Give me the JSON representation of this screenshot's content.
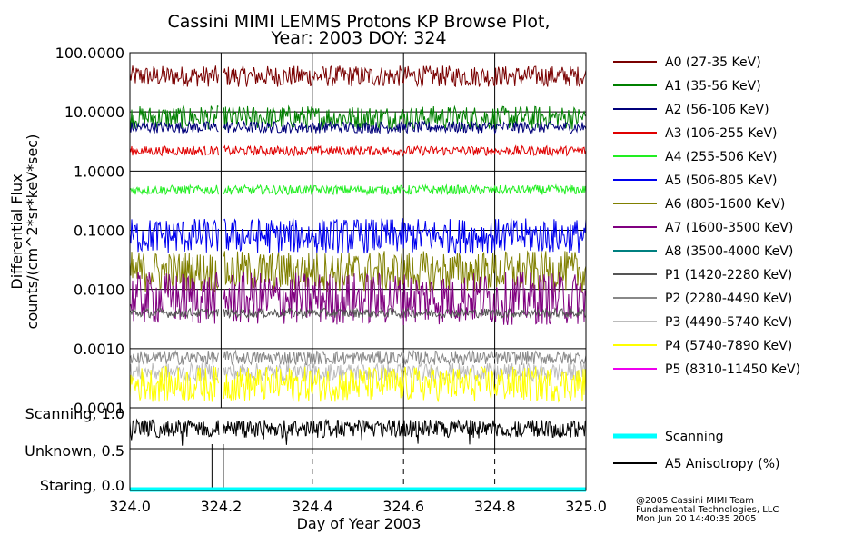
{
  "chart_data": {
    "type": "line",
    "title": "Cassini MIMI LEMMS Protons KP Browse Plot,",
    "subtitle": "Year: 2003 DOY: 324",
    "xlabel": "Day of Year 2003",
    "ylabel": "Differential Flux",
    "ylabel2": "counts/(cm^2*sr*keV*sec)",
    "xlim": [
      324.0,
      325.0
    ],
    "x_ticks": [
      "324.0",
      "324.2",
      "324.4",
      "324.6",
      "324.8",
      "325.0"
    ],
    "x_tick_values": [
      324.0,
      324.2,
      324.4,
      324.6,
      324.8,
      325.0
    ],
    "y_scale": "log",
    "ylim": [
      0.0001,
      100
    ],
    "y_ticks": [
      "100.0000",
      "10.0000",
      "1.0000",
      "0.1000",
      "0.0100",
      "0.0010",
      "0.0001"
    ],
    "y_tick_values": [
      100,
      10,
      1,
      0.1,
      0.01,
      0.001,
      0.0001
    ],
    "data_gap": [
      324.195,
      324.205
    ],
    "series": [
      {
        "name": "A0 (27-35 KeV)",
        "color": "#7a0000",
        "level": 40,
        "spread": 0.18
      },
      {
        "name": "A1 (35-56 KeV)",
        "color": "#008000",
        "level": 8,
        "spread": 0.2
      },
      {
        "name": "A2 (56-106 KeV)",
        "color": "#00007a",
        "level": 5.5,
        "spread": 0.1
      },
      {
        "name": "A3 (106-255 KeV)",
        "color": "#e00000",
        "level": 2.2,
        "spread": 0.08
      },
      {
        "name": "A4 (255-506 KeV)",
        "color": "#22ee22",
        "level": 0.48,
        "spread": 0.08
      },
      {
        "name": "A5 (506-805 KeV)",
        "color": "#0000ee",
        "level": 0.08,
        "spread": 0.3
      },
      {
        "name": "A6 (805-1600 KeV)",
        "color": "#808000",
        "level": 0.02,
        "spread": 0.35
      },
      {
        "name": "A7 (1600-3500 KeV)",
        "color": "#800080",
        "level": 0.007,
        "spread": 0.45
      },
      {
        "name": "A8 (3500-4000 KeV)",
        "color": "#008080",
        "level": 0.0001,
        "spread": 0.0
      },
      {
        "name": "P1 (1420-2280 KeV)",
        "color": "#555555",
        "level": 0.004,
        "spread": 0.08
      },
      {
        "name": "P2 (2280-4490 KeV)",
        "color": "#888888",
        "level": 0.0007,
        "spread": 0.12
      },
      {
        "name": "P3 (4490-5740 KeV)",
        "color": "#bbbbbb",
        "level": 0.0004,
        "spread": 0.15
      },
      {
        "name": "P4 (5740-7890 KeV)",
        "color": "#ffff00",
        "level": 0.00025,
        "spread": 0.3
      },
      {
        "name": "P5 (8310-11450 KeV)",
        "color": "#ee00ee",
        "level": 0.0001,
        "spread": 0.0
      }
    ],
    "lower_panel": {
      "y_ticks": [
        "Scanning, 1.0",
        "Unknown, 0.5",
        "Staring, 0.0"
      ],
      "y_tick_values": [
        1.0,
        0.5,
        0.0
      ],
      "ylim": [
        0.0,
        1.0
      ],
      "dashed_x": [
        324.4,
        324.6,
        324.8
      ],
      "marker_x": [
        324.18,
        324.205
      ],
      "series": [
        {
          "name": "Scanning",
          "color": "#00ffff",
          "level": 0.0
        },
        {
          "name": "A5 Anisotropy (%)",
          "color": "#000000",
          "level": 0.83
        }
      ]
    }
  },
  "credits": [
    "@2005 Cassini MIMI Team",
    "Fundamental Technologies, LLC",
    "Mon Jun 20 14:40:35 2005"
  ]
}
